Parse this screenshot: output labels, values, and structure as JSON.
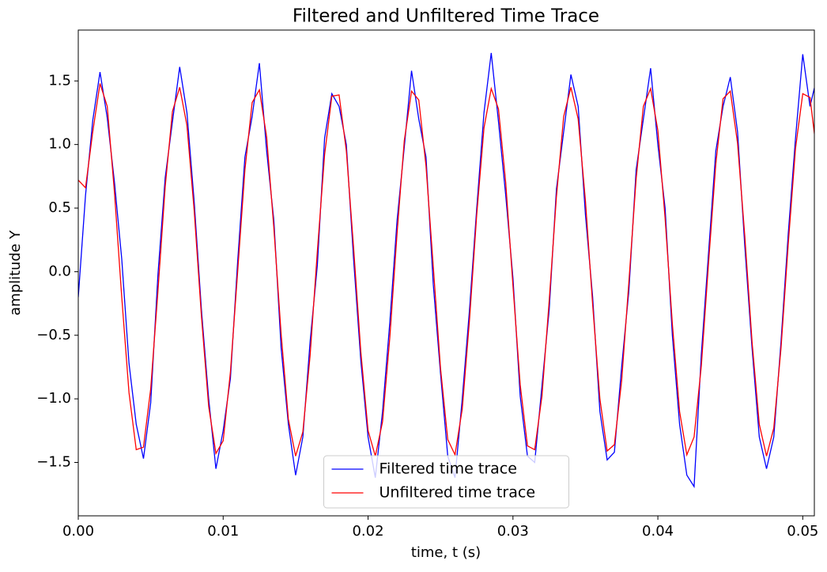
{
  "chart_data": {
    "type": "line",
    "title": "Filtered and Unfiltered Time Trace",
    "xlabel": "time, t (s)",
    "ylabel": "amplitude Y",
    "x": [
      0,
      0.0005,
      0.001,
      0.0015,
      0.002,
      0.0025,
      0.003,
      0.0035,
      0.004,
      0.0045,
      0.005,
      0.0055,
      0.006,
      0.0065,
      0.007,
      0.0075,
      0.008,
      0.0085,
      0.009,
      0.0095,
      0.01,
      0.0105,
      0.011,
      0.0115,
      0.012,
      0.0125,
      0.013,
      0.0135,
      0.014,
      0.0145,
      0.015,
      0.0155,
      0.016,
      0.0165,
      0.017,
      0.0175,
      0.018,
      0.0185,
      0.019,
      0.0195,
      0.02,
      0.0205,
      0.021,
      0.0215,
      0.022,
      0.0225,
      0.023,
      0.0235,
      0.024,
      0.0245,
      0.025,
      0.0255,
      0.026,
      0.0265,
      0.027,
      0.0275,
      0.028,
      0.0285,
      0.029,
      0.0295,
      0.03,
      0.0305,
      0.031,
      0.0315,
      0.032,
      0.0325,
      0.033,
      0.0335,
      0.034,
      0.0345,
      0.035,
      0.0355,
      0.036,
      0.0365,
      0.037,
      0.0375,
      0.038,
      0.0385,
      0.039,
      0.0395,
      0.04,
      0.0405,
      0.041,
      0.0415,
      0.042,
      0.0425,
      0.043,
      0.0435,
      0.044,
      0.0445,
      0.045,
      0.0455,
      0.046,
      0.0465,
      0.047,
      0.0475,
      0.048,
      0.0485,
      0.049,
      0.0495,
      0.05,
      0.0505,
      0.051
    ],
    "series": [
      {
        "name": "Filtered time trace",
        "color": "#0000ff",
        "values": [
          -0.2,
          0.6,
          1.19,
          1.57,
          1.21,
          0.7,
          0.1,
          -0.72,
          -1.2,
          -1.47,
          -1.03,
          -0.02,
          0.74,
          1.18,
          1.61,
          1.25,
          0.55,
          -0.3,
          -1.0,
          -1.55,
          -1.25,
          -0.84,
          0.08,
          0.9,
          1.22,
          1.64,
          0.95,
          0.4,
          -0.6,
          -1.2,
          -1.6,
          -1.3,
          -0.55,
          0.05,
          1.05,
          1.4,
          1.3,
          1.0,
          0.1,
          -0.7,
          -1.3,
          -1.62,
          -1.1,
          -0.4,
          0.4,
          0.98,
          1.58,
          1.2,
          0.9,
          -0.1,
          -0.8,
          -1.45,
          -1.62,
          -1.0,
          -0.3,
          0.5,
          1.25,
          1.72,
          1.18,
          0.6,
          -0.05,
          -0.98,
          -1.45,
          -1.5,
          -0.9,
          -0.3,
          0.65,
          1.1,
          1.55,
          1.3,
          0.45,
          -0.2,
          -1.1,
          -1.48,
          -1.42,
          -0.75,
          -0.15,
          0.8,
          1.2,
          1.6,
          1.0,
          0.5,
          -0.5,
          -1.2,
          -1.6,
          -1.69,
          -0.65,
          0.15,
          0.95,
          1.3,
          1.53,
          1.1,
          0.2,
          -0.6,
          -1.3,
          -1.55,
          -1.3,
          -0.55,
          0.3,
          1.05,
          1.71,
          1.3,
          1.54
        ]
      },
      {
        "name": "Unfiltered time trace",
        "color": "#ff0000",
        "values": [
          0.72,
          0.66,
          1.1,
          1.48,
          1.3,
          0.62,
          -0.2,
          -0.95,
          -1.4,
          -1.38,
          -0.92,
          -0.15,
          0.67,
          1.26,
          1.45,
          1.15,
          0.48,
          -0.35,
          -1.06,
          -1.43,
          -1.33,
          -0.79,
          0.0,
          0.8,
          1.33,
          1.43,
          1.06,
          0.34,
          -0.49,
          -1.16,
          -1.45,
          -1.26,
          -0.66,
          0.16,
          0.92,
          1.38,
          1.39,
          0.95,
          0.19,
          -0.63,
          -1.25,
          -1.45,
          -1.18,
          -0.52,
          0.3,
          1.03,
          1.42,
          1.35,
          0.83,
          0.04,
          -0.76,
          -1.32,
          -1.44,
          -1.08,
          -0.38,
          0.45,
          1.13,
          1.44,
          1.28,
          0.7,
          -0.11,
          -0.89,
          -1.37,
          -1.4,
          -0.98,
          -0.23,
          0.59,
          1.22,
          1.45,
          1.2,
          0.56,
          -0.26,
          -1.0,
          -1.41,
          -1.36,
          -0.86,
          -0.08,
          0.73,
          1.3,
          1.44,
          1.11,
          0.42,
          -0.41,
          -1.1,
          -1.44,
          -1.3,
          -0.74,
          0.07,
          0.85,
          1.36,
          1.42,
          1.01,
          0.28,
          -0.55,
          -1.2,
          -1.45,
          -1.23,
          -0.6,
          0.22,
          0.97,
          1.4,
          1.37,
          0.9
        ]
      }
    ],
    "xlim": [
      0,
      0.0508
    ],
    "ylim": [
      -1.92,
      1.9
    ],
    "xticks": [
      {
        "value": 0,
        "label": "0.00"
      },
      0.01,
      0.02,
      0.03,
      0.04,
      0.05
    ],
    "yticks": [
      {
        "value": -1.5,
        "label": "−1.5"
      },
      {
        "value": -1.0,
        "label": "−1.0"
      },
      {
        "value": -0.5,
        "label": "−0.5"
      },
      {
        "value": 0,
        "label": "0.0"
      },
      0.5,
      {
        "value": 1.0,
        "label": "1.0"
      },
      1.5
    ],
    "legend": "lower center"
  }
}
